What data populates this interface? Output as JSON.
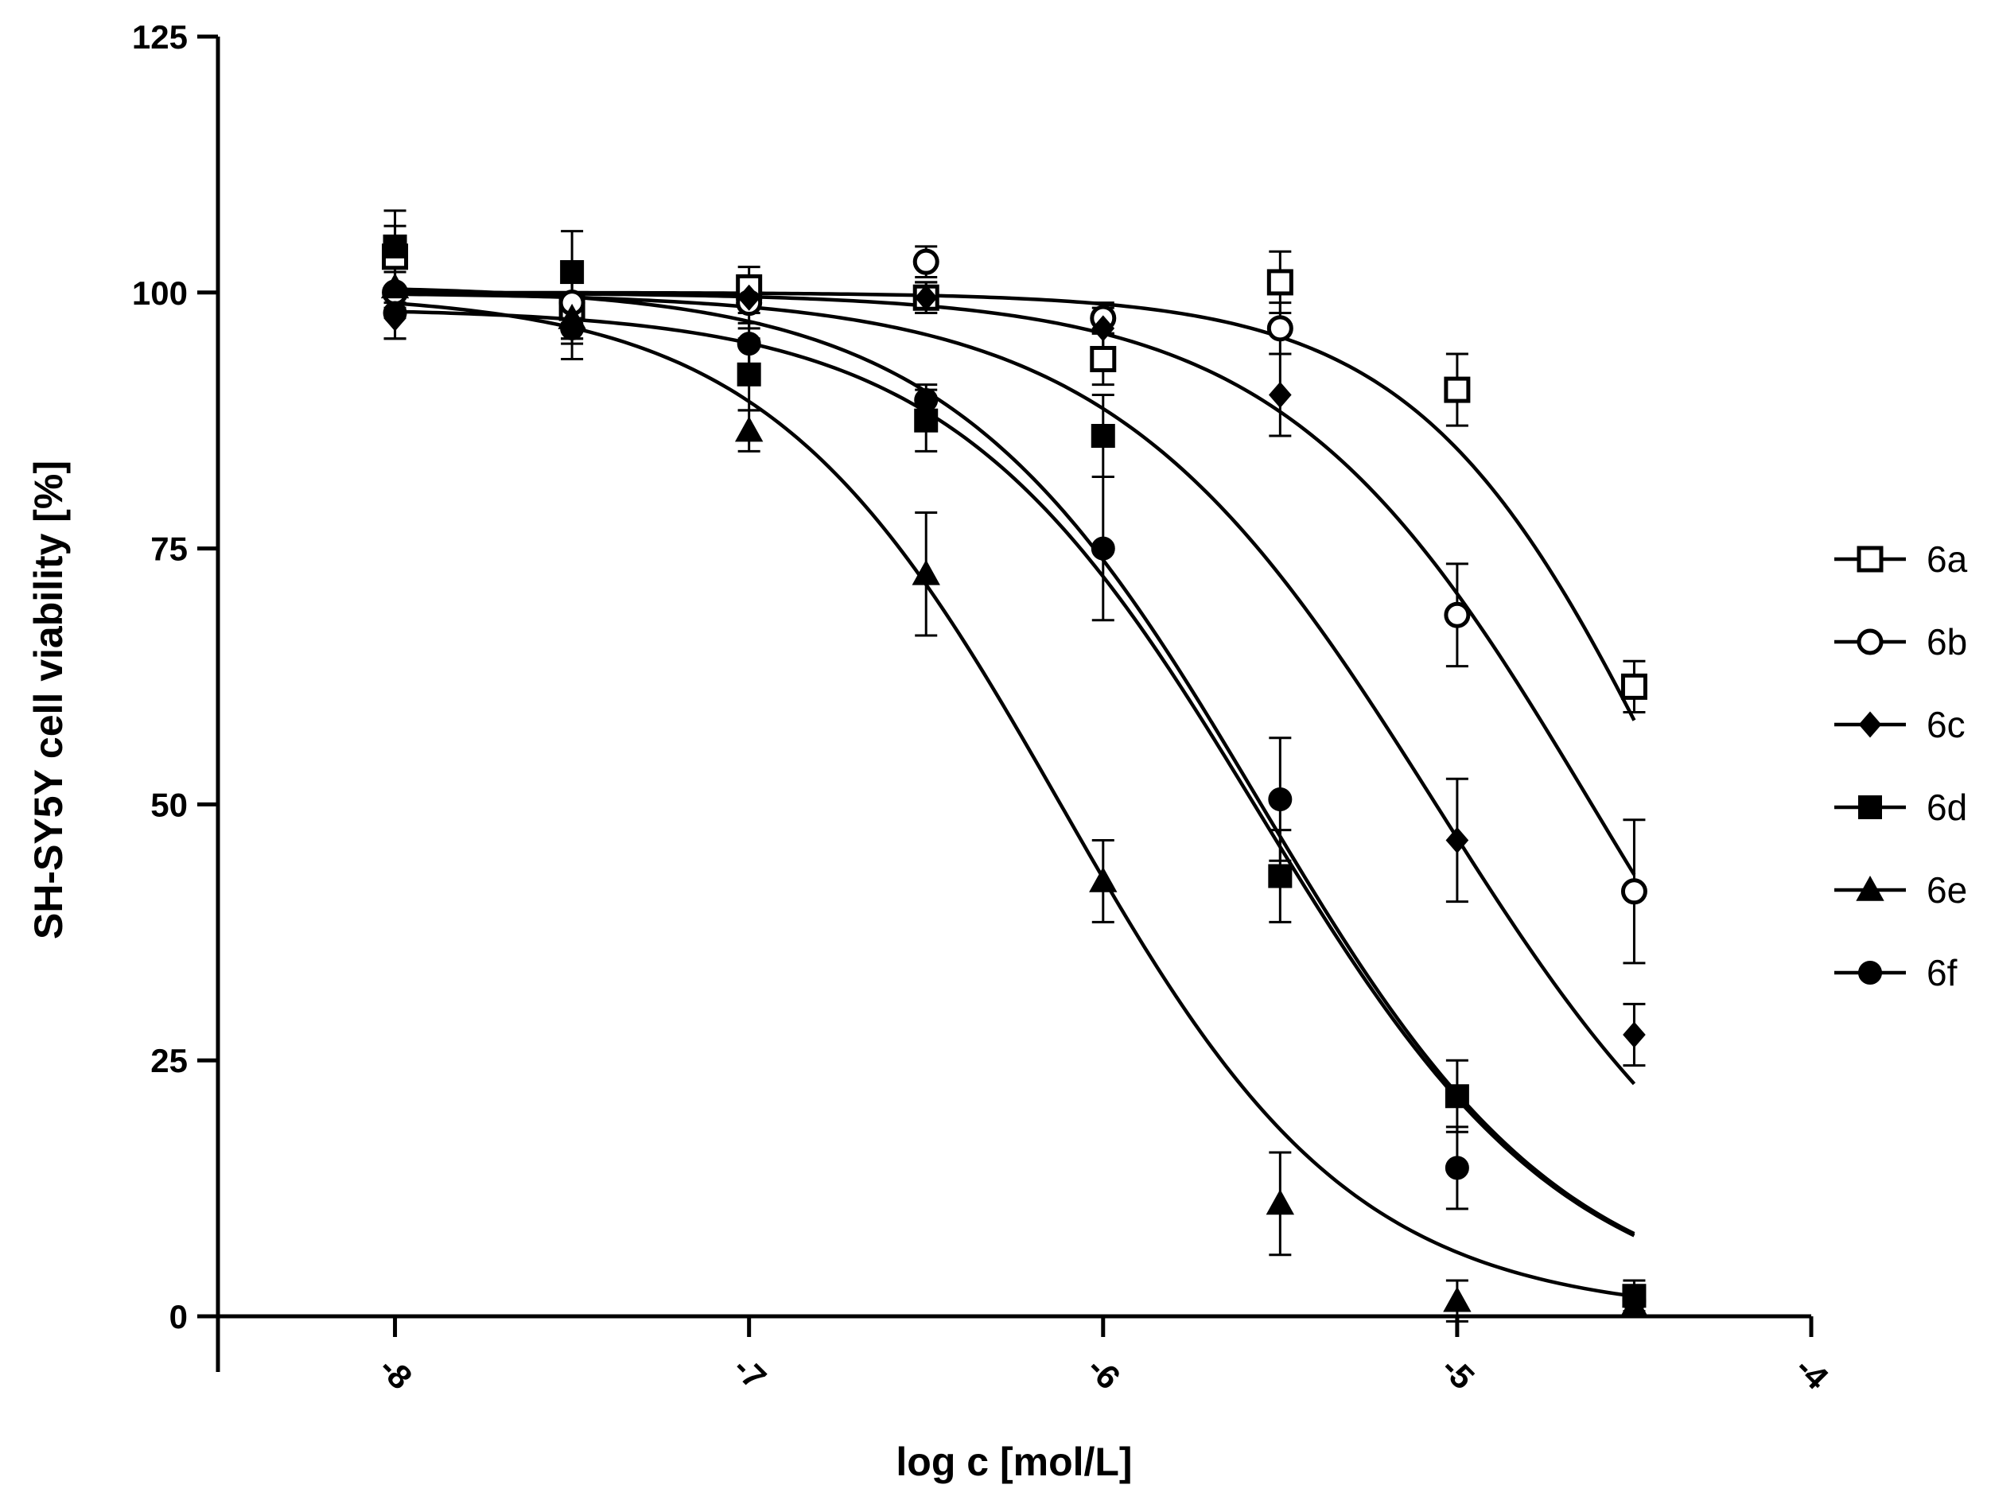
{
  "chart_data": {
    "type": "scatter",
    "title": "",
    "xlabel": "log c [mol/L]",
    "ylabel": "SH-SY5Y cell viability [%]",
    "xlim": [
      -8.5,
      -4
    ],
    "ylim": [
      0,
      125
    ],
    "x_ticks": [
      -8,
      -7,
      -6,
      -5,
      -4
    ],
    "x_tick_labels": [
      "-8",
      "-7",
      "-6",
      "-5",
      "-4"
    ],
    "y_ticks": [
      0,
      25,
      50,
      75,
      100,
      125
    ],
    "y_tick_labels": [
      "0",
      "25",
      "50",
      "75",
      "100",
      "125"
    ],
    "grid": false,
    "legend_position": "right",
    "fit": "sigmoidal dose-response",
    "series": [
      {
        "name": "6a",
        "marker": "square-open",
        "x": [
          -8,
          -7.5,
          -7,
          -6.5,
          -6,
          -5.5,
          -5,
          -4.5
        ],
        "y": [
          103.5,
          98.5,
          100.5,
          99.5,
          93.5,
          101,
          90.5,
          61.5
        ],
        "err": [
          4.5,
          3,
          2,
          1.5,
          2.5,
          3,
          3.5,
          2.5
        ],
        "fit": {
          "top": 100,
          "bottom": 0,
          "logIC50": -4.38,
          "slope": 1.2,
          "x_from": -8,
          "x_to": -4.5
        }
      },
      {
        "name": "6b",
        "marker": "circle-open",
        "x": [
          -8,
          -7.5,
          -7,
          -6.5,
          -6,
          -5.5,
          -5,
          -4.5
        ],
        "y": [
          100,
          99,
          99,
          103,
          97.5,
          96.5,
          68.5,
          41.5
        ],
        "err": [
          2,
          2,
          2.5,
          1.5,
          1.5,
          2.5,
          5,
          7
        ],
        "fit": {
          "top": 100,
          "bottom": 0,
          "logIC50": -4.62,
          "slope": 1.0,
          "x_from": -8,
          "x_to": -4.5
        }
      },
      {
        "name": "6c",
        "marker": "diamond-filled",
        "x": [
          -8,
          -7.5,
          -7,
          -6.5,
          -6,
          -5.5,
          -5,
          -4.5
        ],
        "y": [
          97.5,
          97,
          99.5,
          99.5,
          96.5,
          90,
          46.5,
          27.5
        ],
        "err": [
          2,
          2,
          1.5,
          1.5,
          2,
          4,
          6,
          3
        ],
        "fit": {
          "top": 100,
          "bottom": 0,
          "logIC50": -5.06,
          "slope": 0.95,
          "x_from": -8,
          "x_to": -4.5
        }
      },
      {
        "name": "6d",
        "marker": "square-filled",
        "x": [
          -8,
          -7.5,
          -7,
          -6.5,
          -6,
          -5.5,
          -5,
          -4.5
        ],
        "y": [
          104.5,
          102,
          92,
          87.5,
          86,
          43,
          21.5,
          2
        ],
        "err": [
          2,
          4,
          3.5,
          3,
          4,
          4.5,
          3.5,
          1.5
        ],
        "fit": {
          "top": 100.7,
          "bottom": 0,
          "logIC50": -5.56,
          "slope": 1.0,
          "x_from": -8,
          "x_to": -4.5
        }
      },
      {
        "name": "6e",
        "marker": "triangle-filled",
        "x": [
          -8,
          -7.5,
          -7,
          -6.5,
          -6,
          -5.5,
          -5,
          -4.5
        ],
        "y": [
          100.5,
          97.5,
          86.5,
          72.5,
          42.5,
          11,
          1.5,
          1
        ],
        "err": [
          2,
          2,
          2,
          6,
          4,
          5,
          2,
          1
        ],
        "fit": {
          "top": 100,
          "bottom": 0,
          "logIC50": -6.12,
          "slope": 1.05,
          "x_from": -8,
          "x_to": -4.5
        }
      },
      {
        "name": "6f",
        "marker": "circle-filled",
        "x": [
          -8,
          -7.5,
          -7,
          -6.5,
          -6,
          -5.5,
          -5,
          -4.5
        ],
        "y": [
          98,
          96.5,
          95,
          89.5,
          75,
          50.5,
          14.5,
          1.5
        ],
        "err": [
          2.5,
          3,
          2,
          1.5,
          7,
          6,
          4,
          1.5
        ],
        "fit": {
          "top": 98.5,
          "bottom": 0,
          "logIC50": -5.56,
          "slope": 1.0,
          "x_from": -8,
          "x_to": -4.5
        }
      }
    ]
  }
}
